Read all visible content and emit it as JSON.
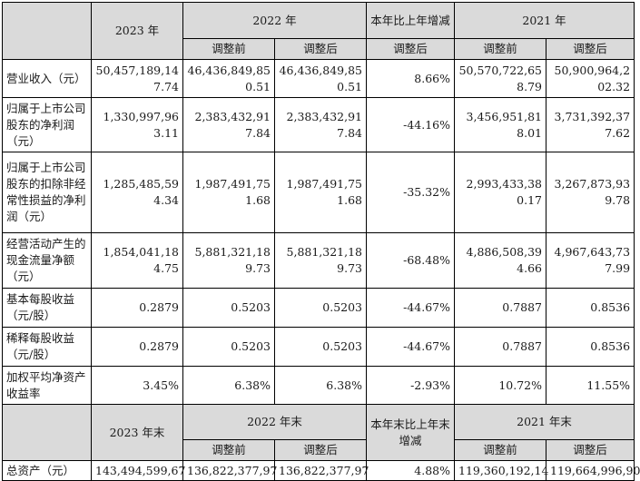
{
  "header": {
    "year_2023": "2023 年",
    "year_2022": "2022 年",
    "change_title": "本年比上年增减",
    "year_2021": "2021 年",
    "before_adj": "调整前",
    "after_adj": "调整后",
    "change_after_adj": "调整后"
  },
  "rows": [
    {
      "label": "营业收入（元）",
      "v2023": "50,457,189,147.74",
      "v2022_before": "46,436,849,850.51",
      "v2022_after": "46,436,849,850.51",
      "change": "8.66%",
      "v2021_before": "50,570,722,658.79",
      "v2021_after": "50,900,964,202.32"
    },
    {
      "label": "归属于上市公司股东的净利润（元）",
      "v2023": "1,330,997,963.11",
      "v2022_before": "2,383,432,917.84",
      "v2022_after": "2,383,432,917.84",
      "change": "-44.16%",
      "v2021_before": "3,456,951,818.01",
      "v2021_after": "3,731,392,377.62"
    },
    {
      "label": "归属于上市公司股东的扣除非经常性损益的净利润（元）",
      "v2023": "1,285,485,594.34",
      "v2022_before": "1,987,491,751.68",
      "v2022_after": "1,987,491,751.68",
      "change": "-35.32%",
      "v2021_before": "2,993,433,380.17",
      "v2021_after": "3,267,873,939.78"
    },
    {
      "label": "经营活动产生的现金流量净额（元）",
      "v2023": "1,854,041,184.75",
      "v2022_before": "5,881,321,189.73",
      "v2022_after": "5,881,321,189.73",
      "change": "-68.48%",
      "v2021_before": "4,886,508,394.66",
      "v2021_after": "4,967,643,737.99"
    },
    {
      "label": "基本每股收益（元/股）",
      "v2023": "0.2879",
      "v2022_before": "0.5203",
      "v2022_after": "0.5203",
      "change": "-44.67%",
      "v2021_before": "0.7887",
      "v2021_after": "0.8536"
    },
    {
      "label": "稀释每股收益（元/股）",
      "v2023": "0.2879",
      "v2022_before": "0.5203",
      "v2022_after": "0.5203",
      "change": "-44.67%",
      "v2021_before": "0.7887",
      "v2021_after": "0.8536"
    },
    {
      "label": "加权平均净资产收益率",
      "v2023": "3.45%",
      "v2022_before": "6.38%",
      "v2022_after": "6.38%",
      "change": "-2.93%",
      "v2021_before": "10.72%",
      "v2021_after": "11.55%"
    }
  ],
  "header2": {
    "year_2023_end": "2023 年末",
    "year_2022_end": "2022 年末",
    "change_title": "本年末比上年末增减",
    "year_2021_end": "2021 年末",
    "before_adj": "调整前",
    "after_adj": "调整后"
  },
  "row_assets": {
    "label": "总资产（元）",
    "v2023": "143,494,599,67",
    "v2022_before": "136,822,377,97",
    "v2022_after": "136,822,377,97",
    "change": "4.88%",
    "v2021_before": "119,360,192,14",
    "v2021_after": "119,664,996,90"
  }
}
